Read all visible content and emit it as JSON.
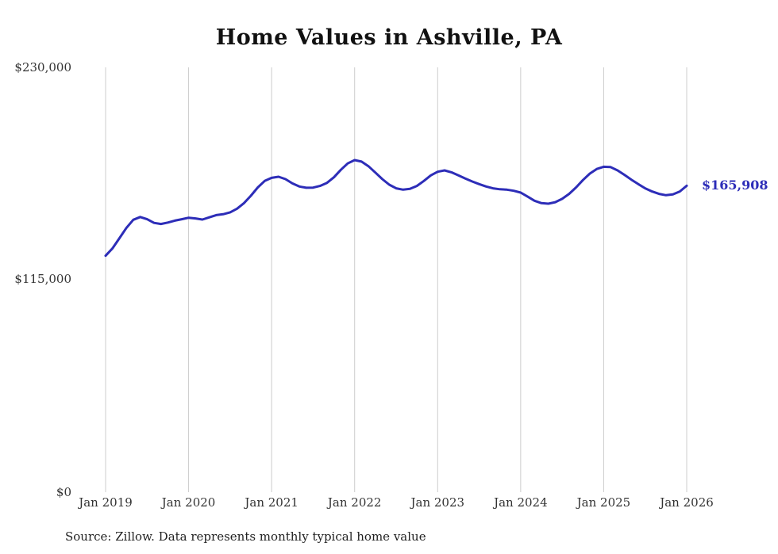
{
  "source": "Source: Zillow. Data represents monthly typical home value",
  "end_label": "$165,908",
  "colors": {
    "line": "#2d2db8",
    "end_label": "#2d2db8",
    "grid": "#cccccc",
    "text": "#333333"
  },
  "chart_data": {
    "type": "line",
    "title": "Home Values in Ashville, PA",
    "x_ticks": [
      "Jan 2019",
      "Jan 2020",
      "Jan 2021",
      "Jan 2022",
      "Jan 2023",
      "Jan 2024",
      "Jan 2025",
      "Jan 2026"
    ],
    "y_ticks": [
      "$0",
      "$115,000",
      "$230,000"
    ],
    "ylim": [
      0,
      230000
    ],
    "xlabel": "",
    "ylabel": "",
    "grid": "vertical-only",
    "legend": "none",
    "final_value": 165908,
    "series": [
      {
        "name": "Typical home value",
        "start": "Jan 2019",
        "frequency": "monthly",
        "values": [
          128000,
          132000,
          137500,
          143000,
          147500,
          149000,
          147800,
          145800,
          145200,
          146000,
          147000,
          147800,
          148600,
          148200,
          147600,
          148800,
          150000,
          150500,
          151500,
          153500,
          156500,
          160500,
          165000,
          168500,
          170200,
          170800,
          169500,
          167200,
          165500,
          164800,
          164900,
          165800,
          167500,
          170500,
          174500,
          178000,
          179800,
          179000,
          176500,
          173000,
          169500,
          166500,
          164500,
          163800,
          164200,
          165800,
          168500,
          171500,
          173500,
          174200,
          173200,
          171500,
          169800,
          168200,
          166800,
          165500,
          164500,
          164000,
          163800,
          163200,
          162200,
          160000,
          157800,
          156500,
          156200,
          157000,
          158800,
          161500,
          165000,
          169000,
          172500,
          175000,
          176200,
          176000,
          174200,
          171800,
          169200,
          166800,
          164500,
          162800,
          161500,
          160800,
          161200,
          162800,
          165908
        ]
      }
    ]
  }
}
